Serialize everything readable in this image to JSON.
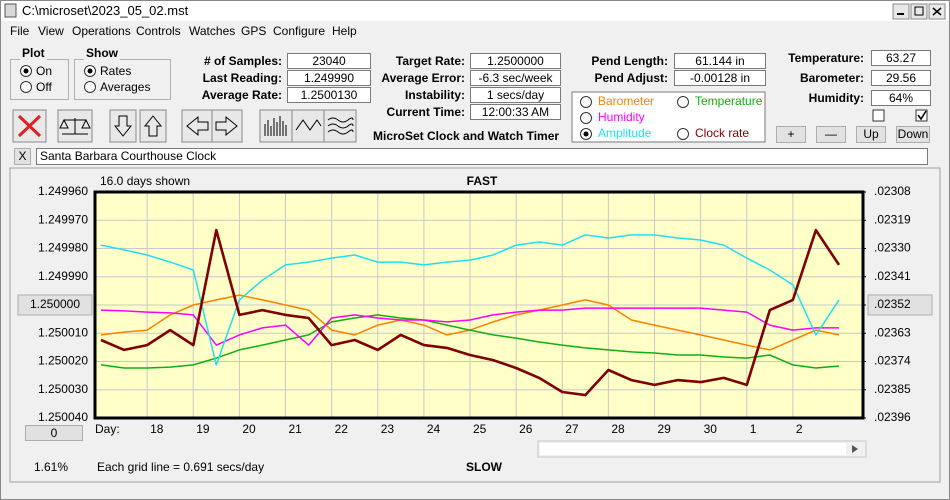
{
  "window": {
    "title": "C:\\microset\\2023_05_02.mst"
  },
  "menu": [
    "File",
    "View",
    "Operations",
    "Controls",
    "Watches",
    "GPS",
    "Configure",
    "Help"
  ],
  "plot_group": {
    "title": "Plot",
    "options": [
      "On",
      "Off"
    ]
  },
  "show_group": {
    "title": "Show",
    "options": [
      "Rates",
      "Averages"
    ]
  },
  "readings": [
    {
      "label": "# of Samples:",
      "value": "23040"
    },
    {
      "label": "Last Reading:",
      "value": "1.249990"
    },
    {
      "label": "Average Rate:",
      "value": "1.2500130"
    }
  ],
  "timer": [
    {
      "label": "Target Rate:",
      "value": "1.2500000"
    },
    {
      "label": "Average Error:",
      "value": "-6.3 sec/week"
    },
    {
      "label": "Instability:",
      "value": "1 secs/day"
    },
    {
      "label": "Current Time:",
      "value": "12:00:33 AM"
    }
  ],
  "pendulum": [
    {
      "label": "Pend Length:",
      "value": "61.144 in"
    },
    {
      "label": "Pend Adjust:",
      "value": "-0.00128 in"
    }
  ],
  "weather": [
    {
      "label": "Temperature:",
      "value": "63.27"
    },
    {
      "label": "Barometer:",
      "value": "29.56"
    },
    {
      "label": "Humidity:",
      "value": "64%"
    }
  ],
  "app_caption": "MicroSet Clock and Watch Timer",
  "buttons": [
    "+",
    "—",
    "Up",
    "Down"
  ],
  "close_button": "X",
  "watch_name": "Santa Barbara Courthouse Clock",
  "chart_data": {
    "type": "line",
    "days_shown": "16.0 days shown",
    "top_label": "FAST",
    "bottom_label": "SLOW",
    "x_label": "Day:",
    "footer": "Each grid line = 0.691 secs/day",
    "status": "1.61%",
    "offset_button": "0",
    "grid": true,
    "y_inverted": true,
    "ylim": [
      1.24996,
      1.25004
    ],
    "yticks": [
      {
        "value": 1.24996,
        "label": "1.249960"
      },
      {
        "value": 1.24997,
        "label": "1.249970"
      },
      {
        "value": 1.24998,
        "label": "1.249980"
      },
      {
        "value": 1.24999,
        "label": "1.249990"
      },
      {
        "value": 1.25,
        "label": "1.250000"
      },
      {
        "value": 1.25001,
        "label": "1.250010"
      },
      {
        "value": 1.25002,
        "label": "1.250020"
      },
      {
        "value": 1.25003,
        "label": "1.250030"
      },
      {
        "value": 1.25004,
        "label": "1.250040"
      }
    ],
    "y2lim": [
      0.02308,
      0.02396
    ],
    "y2ticks": [
      {
        "value": 0.02308,
        "label": ".02308"
      },
      {
        "value": 0.02319,
        "label": ".02319"
      },
      {
        "value": 0.0233,
        "label": ".02330"
      },
      {
        "value": 0.02341,
        "label": ".02341"
      },
      {
        "value": 0.02352,
        "label": ".02352"
      },
      {
        "value": 0.02363,
        "label": ".02363"
      },
      {
        "value": 0.02374,
        "label": ".02374"
      },
      {
        "value": 0.02385,
        "label": ".02385"
      },
      {
        "value": 0.02396,
        "label": ".02396"
      }
    ],
    "categories": [
      null,
      null,
      "18",
      null,
      "19",
      null,
      "20",
      null,
      "21",
      null,
      "22",
      null,
      "23",
      null,
      "24",
      null,
      "25",
      null,
      "26",
      null,
      "27",
      null,
      "28",
      null,
      "29",
      null,
      "30",
      null,
      "1",
      null,
      "2",
      null,
      null
    ],
    "series": [
      {
        "name": "Barometer",
        "color": "#ff8000",
        "values": [
          1.2500106,
          1.2500096,
          1.2500089,
          1.2500035,
          1.25,
          1.2499982,
          1.2499965,
          1.2499982,
          1.25,
          1.2500018,
          1.2500089,
          1.2500106,
          1.2500071,
          1.2500053,
          1.2500071,
          1.2500106,
          1.2500089,
          1.250006,
          1.2500035,
          1.2500018,
          1.25,
          1.2499982,
          1.25,
          1.2500053,
          1.2500071,
          1.2500089,
          1.2500106,
          1.2500124,
          1.2500142,
          1.2500159,
          1.2500124,
          1.2500089,
          1.2500106
        ]
      },
      {
        "name": "Temperature",
        "color": "#10b010",
        "values": [
          1.2500212,
          1.2500223,
          1.2500223,
          1.250022,
          1.2500212,
          1.2500188,
          1.2500159,
          1.2500142,
          1.2500124,
          1.2500106,
          1.250006,
          1.2500046,
          1.2500035,
          1.2500046,
          1.2500053,
          1.2500071,
          1.2500089,
          1.2500106,
          1.2500117,
          1.2500131,
          1.2500142,
          1.2500152,
          1.2500159,
          1.2500166,
          1.250017,
          1.2500177,
          1.2500177,
          1.2500184,
          1.2500188,
          1.2500177,
          1.2500212,
          1.2500223,
          1.2500216
        ]
      },
      {
        "name": "Humidity",
        "color": "#ff00ff",
        "values": [
          1.2500018,
          1.2500021,
          1.2500025,
          1.2500028,
          1.2500035,
          1.2500142,
          1.2500106,
          1.2500081,
          1.2500071,
          1.2500142,
          1.2500046,
          1.2500035,
          1.2500046,
          1.2500053,
          1.2500053,
          1.250006,
          1.2500053,
          1.2500035,
          1.2500025,
          1.2500018,
          1.2500018,
          1.2500011,
          1.2500011,
          1.2500011,
          1.2500011,
          1.2500011,
          1.2500011,
          1.2500018,
          1.2500025,
          1.2500071,
          1.2500089,
          1.2500081,
          1.2500081
        ]
      },
      {
        "name": "Amplitude",
        "color": "#20e0f0",
        "values": [
          1.2499788,
          1.2499805,
          1.2499823,
          1.2499848,
          1.2499876,
          1.2500212,
          1.2499982,
          1.2499912,
          1.2499858,
          1.2499848,
          1.2499834,
          1.2499823,
          1.2499848,
          1.2499848,
          1.2499858,
          1.2499848,
          1.2499841,
          1.2499823,
          1.2499788,
          1.2499777,
          1.2499788,
          1.2499752,
          1.2499763,
          1.2499752,
          1.2499752,
          1.2499763,
          1.249977,
          1.2499788,
          1.2499834,
          1.2499876,
          1.2499929,
          1.2500106,
          1.2499982
        ]
      },
      {
        "name": "Clock rate",
        "color": "#800000",
        "values": [
          1.2500124,
          1.2500159,
          1.2500142,
          1.2500089,
          1.2500142,
          1.2499735,
          1.2500035,
          1.2500018,
          1.2500035,
          1.2500046,
          1.2500142,
          1.2500124,
          1.2500159,
          1.2500106,
          1.2500142,
          1.2500152,
          1.2500177,
          1.2500195,
          1.2500223,
          1.2500258,
          1.2500308,
          1.2500319,
          1.250023,
          1.2500266,
          1.2500283,
          1.2500266,
          1.2500273,
          1.2500258,
          1.2500283,
          1.2500018,
          1.2499982,
          1.2499735,
          1.2499858
        ]
      }
    ]
  }
}
